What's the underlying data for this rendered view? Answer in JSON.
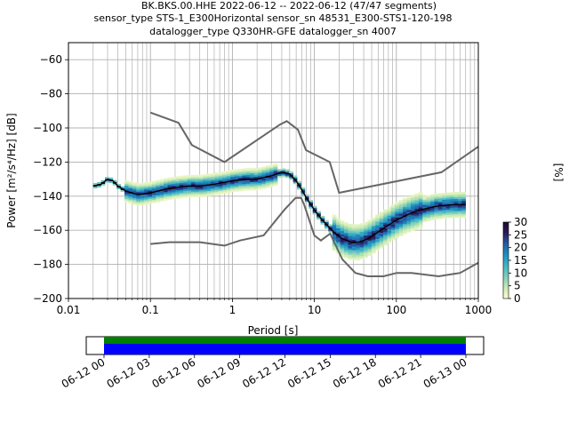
{
  "chart_data": [
    {
      "type": "heatmap",
      "title_lines": [
        "BK.BKS.00.HHE   2022-06-12 -- 2022-06-12  (47/47 segments)",
        "sensor_type STS-1_E300Horizontal sensor_sn 48531_E300-STS1-120-198",
        "datalogger_type Q330HR-GFE datalogger_sn 4007"
      ],
      "xlabel": "Period [s]",
      "ylabel": "Power [m²/s⁴/Hz] [dB]",
      "x_scale": "log",
      "xlim": [
        0.01,
        1000
      ],
      "ylim": [
        -200,
        -50
      ],
      "x_ticks": [
        {
          "value": 0.01,
          "label": "0.01"
        },
        {
          "value": 0.1,
          "label": "0.1"
        },
        {
          "value": 1,
          "label": "1"
        },
        {
          "value": 10,
          "label": "10"
        },
        {
          "value": 100,
          "label": "100"
        },
        {
          "value": 1000,
          "label": "1000"
        }
      ],
      "y_ticks": [
        {
          "value": -60,
          "label": "−60"
        },
        {
          "value": -80,
          "label": "−80"
        },
        {
          "value": -100,
          "label": "−100"
        },
        {
          "value": -120,
          "label": "−120"
        },
        {
          "value": -140,
          "label": "−140"
        },
        {
          "value": -160,
          "label": "−160"
        },
        {
          "value": -180,
          "label": "−180"
        },
        {
          "value": -200,
          "label": "−200"
        }
      ],
      "grid": true,
      "mean_curve": {
        "color": "#000000",
        "points": [
          [
            0.02,
            -134
          ],
          [
            0.025,
            -133
          ],
          [
            0.03,
            -130
          ],
          [
            0.035,
            -131
          ],
          [
            0.04,
            -134
          ],
          [
            0.05,
            -137
          ],
          [
            0.07,
            -139
          ],
          [
            0.1,
            -138
          ],
          [
            0.15,
            -136
          ],
          [
            0.2,
            -135
          ],
          [
            0.3,
            -134
          ],
          [
            0.4,
            -134
          ],
          [
            0.6,
            -133
          ],
          [
            1,
            -131
          ],
          [
            1.5,
            -130
          ],
          [
            2,
            -130
          ],
          [
            3,
            -128
          ],
          [
            4,
            -126
          ],
          [
            5,
            -127
          ],
          [
            6,
            -131
          ],
          [
            7,
            -136
          ],
          [
            8,
            -141
          ],
          [
            10,
            -148
          ],
          [
            12,
            -153
          ],
          [
            15,
            -158
          ],
          [
            18,
            -162
          ],
          [
            22,
            -165
          ],
          [
            28,
            -167
          ],
          [
            35,
            -167
          ],
          [
            45,
            -165
          ],
          [
            60,
            -161
          ],
          [
            80,
            -157
          ],
          [
            100,
            -154
          ],
          [
            150,
            -150
          ],
          [
            200,
            -148
          ],
          [
            300,
            -146
          ],
          [
            500,
            -145
          ],
          [
            700,
            -145
          ]
        ]
      },
      "noise_models": {
        "color": "#666666",
        "high": [
          [
            0.1,
            -91
          ],
          [
            0.22,
            -97
          ],
          [
            0.32,
            -110
          ],
          [
            0.8,
            -120
          ],
          [
            3.8,
            -98
          ],
          [
            4.6,
            -96
          ],
          [
            6.3,
            -101
          ],
          [
            7.9,
            -113
          ],
          [
            15.4,
            -120
          ],
          [
            20,
            -138
          ],
          [
            354.8,
            -126
          ],
          [
            1000,
            -111
          ]
        ],
        "low": [
          [
            0.1,
            -168
          ],
          [
            0.17,
            -167
          ],
          [
            0.4,
            -167
          ],
          [
            0.8,
            -169
          ],
          [
            1.24,
            -166
          ],
          [
            2.4,
            -163
          ],
          [
            4.3,
            -148
          ],
          [
            5.9,
            -141
          ],
          [
            6.9,
            -141
          ],
          [
            7.5,
            -145
          ],
          [
            10,
            -163
          ],
          [
            12,
            -166
          ],
          [
            15.6,
            -162
          ],
          [
            21.9,
            -177
          ],
          [
            31.6,
            -185
          ],
          [
            45,
            -187
          ],
          [
            70,
            -187
          ],
          [
            101,
            -185
          ],
          [
            154,
            -185
          ],
          [
            328,
            -187
          ],
          [
            600,
            -185
          ],
          [
            1000,
            -179
          ]
        ]
      },
      "colorbar": {
        "label": "[%]",
        "ticks": [
          {
            "value": 0,
            "label": "0"
          },
          {
            "value": 5,
            "label": "5"
          },
          {
            "value": 10,
            "label": "10"
          },
          {
            "value": 15,
            "label": "15"
          },
          {
            "value": 20,
            "label": "20"
          },
          {
            "value": 25,
            "label": "25"
          },
          {
            "value": 30,
            "label": "30"
          }
        ],
        "range": [
          0,
          30
        ],
        "colors": [
          "#ffffcc",
          "#c7e9b4",
          "#7fcdbb",
          "#41b6c4",
          "#1d91c0",
          "#225ea8",
          "#2c1a5c",
          "#1a0a33"
        ]
      }
    },
    {
      "type": "timeline",
      "date_ticks": [
        "06-12 00",
        "06-12 03",
        "06-12 06",
        "06-12 09",
        "06-12 12",
        "06-12 15",
        "06-12 18",
        "06-12 21",
        "06-13 00"
      ],
      "data_availability_color": "#008000",
      "psd_coverage_color": "#0000ff"
    }
  ]
}
